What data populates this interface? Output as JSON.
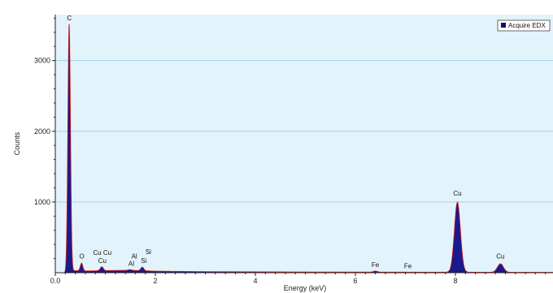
{
  "colors": {
    "plot_background": "#e3f3fb",
    "gridline": "#9dd3ea",
    "spectrum_fill": "#1a1a8c",
    "spectrum_outline": "#d11a1a",
    "legend_swatch": "#101070"
  },
  "chart_data": {
    "type": "area",
    "title": "",
    "xlabel": "Energy (keV)",
    "ylabel": "Counts",
    "xlim": [
      0,
      10
    ],
    "ylim": [
      0,
      3650
    ],
    "x_ticks": [
      0.0,
      2,
      4,
      6,
      8
    ],
    "x_tick_labels": [
      "0.0",
      "2",
      "4",
      "6",
      "8"
    ],
    "y_ticks": [
      1000,
      2000,
      3000
    ],
    "y_tick_labels": [
      "1000",
      "2000",
      "3000"
    ],
    "grid": "horizontal",
    "legend_position": "top-right",
    "series": [
      {
        "name": "Acquire EDX",
        "background": [
          {
            "x": 0.2,
            "y": 0
          },
          {
            "x": 0.3,
            "y": 30
          },
          {
            "x": 0.6,
            "y": 25
          },
          {
            "x": 1.0,
            "y": 30
          },
          {
            "x": 1.5,
            "y": 35
          },
          {
            "x": 2.0,
            "y": 22
          },
          {
            "x": 3.0,
            "y": 15
          },
          {
            "x": 5.0,
            "y": 10
          },
          {
            "x": 7.0,
            "y": 8
          },
          {
            "x": 10.0,
            "y": 5
          }
        ],
        "peaks": [
          {
            "center": 0.277,
            "height": 3500,
            "width": 0.026
          },
          {
            "center": 0.525,
            "height": 110,
            "width": 0.025
          },
          {
            "center": 0.93,
            "height": 55,
            "width": 0.03
          },
          {
            "center": 1.49,
            "height": 10,
            "width": 0.03
          },
          {
            "center": 1.74,
            "height": 50,
            "width": 0.03
          },
          {
            "center": 6.4,
            "height": 15,
            "width": 0.04
          },
          {
            "center": 8.04,
            "height": 990,
            "width": 0.06
          },
          {
            "center": 8.9,
            "height": 120,
            "width": 0.06
          }
        ]
      }
    ],
    "peak_labels": [
      {
        "text": "C",
        "x": 0.28,
        "y": 3570
      },
      {
        "text": "O",
        "x": 0.53,
        "y": 200
      },
      {
        "text": "Cu",
        "x": 0.84,
        "y": 250
      },
      {
        "text": "Cu",
        "x": 1.04,
        "y": 250
      },
      {
        "text": "Cu",
        "x": 0.94,
        "y": 135
      },
      {
        "text": "Al",
        "x": 1.58,
        "y": 200
      },
      {
        "text": "Al",
        "x": 1.52,
        "y": 95
      },
      {
        "text": "Si",
        "x": 1.86,
        "y": 265
      },
      {
        "text": "Si",
        "x": 1.77,
        "y": 140
      },
      {
        "text": "Fe",
        "x": 6.4,
        "y": 80
      },
      {
        "text": "Fe",
        "x": 7.05,
        "y": 65
      },
      {
        "text": "Cu",
        "x": 8.04,
        "y": 1090
      },
      {
        "text": "Cu",
        "x": 8.9,
        "y": 200
      }
    ]
  }
}
